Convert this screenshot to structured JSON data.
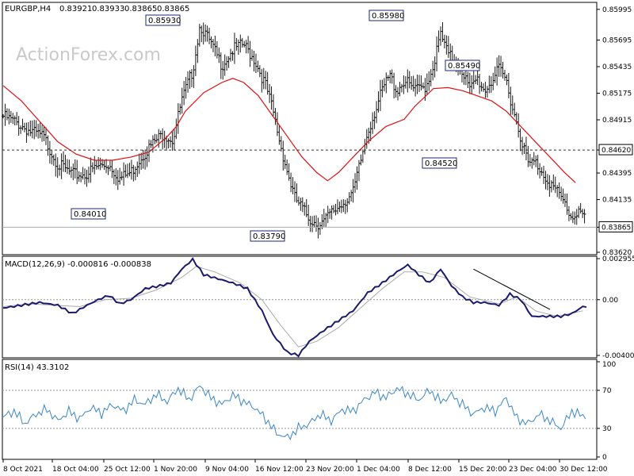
{
  "chart_data": {
    "type": "line",
    "symbol": "EURGBP,H4",
    "ohlc": [
      "0.83921",
      "0.83933",
      "0.83865",
      "0.83865"
    ],
    "watermark": "ActionForex.com",
    "price_axis_ticks": [
      "0.85995",
      "0.85695",
      "0.85435",
      "0.85175",
      "0.84915",
      "0.84620",
      "0.84395",
      "0.84135",
      "0.83865",
      "0.83620"
    ],
    "current_price_label": "0.83865",
    "level_line_label": "0.84620",
    "ylim": [
      0.8362,
      0.8604
    ],
    "price_annotations": [
      {
        "label": "0.85930",
        "value": 0.8593
      },
      {
        "label": "0.85980",
        "value": 0.8598
      },
      {
        "label": "0.85490",
        "value": 0.8549
      },
      {
        "label": "0.84520",
        "value": 0.8452
      },
      {
        "label": "0.84010",
        "value": 0.8401
      },
      {
        "label": "0.83790",
        "value": 0.8379
      }
    ],
    "x_tick_labels": [
      "8 Oct 2021",
      "18 Oct 04:00",
      "25 Oct 12:00",
      "1 Nov 20:00",
      "9 Nov 04:00",
      "16 Nov 12:00",
      "23 Nov 20:00",
      "1 Dec 04:00",
      "8 Dec 12:00",
      "15 Dec 20:00",
      "23 Dec 04:00",
      "30 Dec 12:00"
    ],
    "price_path": [
      [
        0,
        0.8495
      ],
      [
        8,
        0.8488
      ],
      [
        15,
        0.848
      ],
      [
        22,
        0.8475
      ],
      [
        30,
        0.8448
      ],
      [
        38,
        0.8438
      ],
      [
        45,
        0.8438
      ],
      [
        52,
        0.8446
      ],
      [
        58,
        0.8448
      ],
      [
        64,
        0.8434
      ],
      [
        70,
        0.844
      ],
      [
        76,
        0.8456
      ],
      [
        82,
        0.8468
      ],
      [
        88,
        0.8478
      ],
      [
        93,
        0.8472
      ],
      [
        98,
        0.851
      ],
      [
        104,
        0.854
      ],
      [
        108,
        0.8585
      ],
      [
        114,
        0.8565
      ],
      [
        120,
        0.8545
      ],
      [
        126,
        0.856
      ],
      [
        132,
        0.8565
      ],
      [
        138,
        0.855
      ],
      [
        144,
        0.8525
      ],
      [
        148,
        0.85
      ],
      [
        152,
        0.8468
      ],
      [
        156,
        0.844
      ],
      [
        160,
        0.8415
      ],
      [
        164,
        0.8405
      ],
      [
        168,
        0.8395
      ],
      [
        172,
        0.839
      ],
      [
        176,
        0.8392
      ],
      [
        180,
        0.84
      ],
      [
        186,
        0.841
      ],
      [
        192,
        0.842
      ],
      [
        196,
        0.845
      ],
      [
        200,
        0.848
      ],
      [
        204,
        0.85
      ],
      [
        208,
        0.852
      ],
      [
        212,
        0.8535
      ],
      [
        216,
        0.852
      ],
      [
        220,
        0.853
      ],
      [
        226,
        0.852
      ],
      [
        232,
        0.8525
      ],
      [
        236,
        0.8545
      ],
      [
        240,
        0.8575
      ],
      [
        244,
        0.8555
      ],
      [
        248,
        0.855
      ],
      [
        252,
        0.854
      ],
      [
        256,
        0.852
      ],
      [
        260,
        0.8532
      ],
      [
        264,
        0.852
      ],
      [
        268,
        0.853
      ],
      [
        272,
        0.854
      ],
      [
        276,
        0.853
      ],
      [
        280,
        0.85
      ],
      [
        284,
        0.8475
      ],
      [
        288,
        0.8448
      ],
      [
        292,
        0.845
      ],
      [
        296,
        0.844
      ],
      [
        300,
        0.843
      ],
      [
        304,
        0.842
      ],
      [
        308,
        0.841
      ],
      [
        312,
        0.8395
      ],
      [
        316,
        0.8405
      ],
      [
        320,
        0.839
      ]
    ],
    "ma_path": [
      [
        0,
        0.8525
      ],
      [
        10,
        0.851
      ],
      [
        20,
        0.849
      ],
      [
        30,
        0.847
      ],
      [
        40,
        0.8458
      ],
      [
        50,
        0.8452
      ],
      [
        60,
        0.8452
      ],
      [
        70,
        0.8455
      ],
      [
        80,
        0.846
      ],
      [
        90,
        0.8475
      ],
      [
        95,
        0.8485
      ],
      [
        100,
        0.85
      ],
      [
        110,
        0.8518
      ],
      [
        120,
        0.8528
      ],
      [
        126,
        0.8532
      ],
      [
        132,
        0.8528
      ],
      [
        140,
        0.8515
      ],
      [
        148,
        0.8495
      ],
      [
        156,
        0.8475
      ],
      [
        164,
        0.8455
      ],
      [
        172,
        0.844
      ],
      [
        178,
        0.8432
      ],
      [
        184,
        0.844
      ],
      [
        192,
        0.8455
      ],
      [
        200,
        0.847
      ],
      [
        210,
        0.8485
      ],
      [
        220,
        0.8492
      ],
      [
        226,
        0.8505
      ],
      [
        232,
        0.8515
      ],
      [
        236,
        0.8522
      ],
      [
        244,
        0.8523
      ],
      [
        252,
        0.852
      ],
      [
        260,
        0.8515
      ],
      [
        268,
        0.851
      ],
      [
        276,
        0.85
      ],
      [
        284,
        0.8485
      ],
      [
        292,
        0.847
      ],
      [
        300,
        0.8455
      ],
      [
        308,
        0.844
      ],
      [
        314,
        0.843
      ]
    ],
    "macd": {
      "label": "MACD(12,26,9) -0.000816 -0.000838",
      "axis_labels": [
        "0.002955",
        "0.00",
        "-0.004009"
      ],
      "ylim": [
        -0.004009,
        0.002955
      ],
      "macd_path": [
        [
          0,
          -0.0006
        ],
        [
          10,
          -0.0004
        ],
        [
          20,
          -0.0002
        ],
        [
          30,
          -0.0004
        ],
        [
          38,
          -0.001
        ],
        [
          46,
          -0.0004
        ],
        [
          52,
          0.0
        ],
        [
          58,
          0.0003
        ],
        [
          64,
          -0.0003
        ],
        [
          70,
          0.0
        ],
        [
          78,
          0.0008
        ],
        [
          86,
          0.001
        ],
        [
          92,
          0.0012
        ],
        [
          98,
          0.0022
        ],
        [
          104,
          0.0029
        ],
        [
          110,
          0.0018
        ],
        [
          118,
          0.0015
        ],
        [
          126,
          0.0012
        ],
        [
          134,
          0.0008
        ],
        [
          142,
          -0.0008
        ],
        [
          148,
          -0.0025
        ],
        [
          156,
          -0.0038
        ],
        [
          162,
          -0.004
        ],
        [
          168,
          -0.003
        ],
        [
          176,
          -0.0022
        ],
        [
          184,
          -0.0015
        ],
        [
          192,
          -0.0008
        ],
        [
          200,
          0.0005
        ],
        [
          208,
          0.0012
        ],
        [
          216,
          0.002
        ],
        [
          222,
          0.0025
        ],
        [
          228,
          0.0018
        ],
        [
          234,
          0.0012
        ],
        [
          240,
          0.0022
        ],
        [
          246,
          0.001
        ],
        [
          252,
          0.0002
        ],
        [
          258,
          -0.0002
        ],
        [
          264,
          -0.0002
        ],
        [
          272,
          -0.0004
        ],
        [
          278,
          0.0004
        ],
        [
          284,
          0.0
        ],
        [
          290,
          -0.0012
        ],
        [
          298,
          -0.0012
        ],
        [
          306,
          -0.0012
        ],
        [
          312,
          -0.001
        ],
        [
          318,
          -0.0005
        ]
      ],
      "signal_path": [
        [
          0,
          -0.0005
        ],
        [
          14,
          -0.0003
        ],
        [
          28,
          -0.0004
        ],
        [
          42,
          -0.0005
        ],
        [
          56,
          0.0
        ],
        [
          70,
          0.0001
        ],
        [
          84,
          0.0007
        ],
        [
          98,
          0.0016
        ],
        [
          106,
          0.0024
        ],
        [
          116,
          0.002
        ],
        [
          130,
          0.0012
        ],
        [
          142,
          0.0
        ],
        [
          152,
          -0.0018
        ],
        [
          162,
          -0.0034
        ],
        [
          172,
          -0.003
        ],
        [
          184,
          -0.002
        ],
        [
          196,
          -0.0006
        ],
        [
          208,
          0.0008
        ],
        [
          220,
          0.002
        ],
        [
          230,
          0.002
        ],
        [
          242,
          0.0016
        ],
        [
          256,
          0.0002
        ],
        [
          272,
          -0.0003
        ],
        [
          282,
          0.0002
        ],
        [
          292,
          -0.0008
        ],
        [
          304,
          -0.0012
        ],
        [
          318,
          -0.0008
        ]
      ]
    },
    "rsi": {
      "label": "RSI(14) 43.3102",
      "axis_labels": [
        "100",
        "70",
        "30",
        "0"
      ],
      "ylim": [
        0,
        100
      ],
      "levels": [
        70,
        30
      ],
      "path": [
        [
          0,
          42
        ],
        [
          6,
          48
        ],
        [
          12,
          35
        ],
        [
          18,
          45
        ],
        [
          24,
          50
        ],
        [
          30,
          38
        ],
        [
          36,
          48
        ],
        [
          42,
          40
        ],
        [
          48,
          52
        ],
        [
          54,
          46
        ],
        [
          60,
          55
        ],
        [
          66,
          48
        ],
        [
          72,
          60
        ],
        [
          78,
          55
        ],
        [
          84,
          66
        ],
        [
          90,
          58
        ],
        [
          96,
          72
        ],
        [
          102,
          60
        ],
        [
          108,
          75
        ],
        [
          114,
          62
        ],
        [
          120,
          55
        ],
        [
          126,
          65
        ],
        [
          132,
          58
        ],
        [
          138,
          52
        ],
        [
          144,
          40
        ],
        [
          150,
          25
        ],
        [
          156,
          20
        ],
        [
          162,
          30
        ],
        [
          168,
          35
        ],
        [
          174,
          45
        ],
        [
          180,
          38
        ],
        [
          186,
          50
        ],
        [
          192,
          48
        ],
        [
          198,
          60
        ],
        [
          204,
          68
        ],
        [
          210,
          62
        ],
        [
          216,
          72
        ],
        [
          222,
          66
        ],
        [
          228,
          60
        ],
        [
          234,
          70
        ],
        [
          240,
          58
        ],
        [
          246,
          65
        ],
        [
          252,
          55
        ],
        [
          258,
          45
        ],
        [
          264,
          52
        ],
        [
          270,
          48
        ],
        [
          276,
          62
        ],
        [
          282,
          40
        ],
        [
          288,
          35
        ],
        [
          294,
          45
        ],
        [
          300,
          38
        ],
        [
          306,
          30
        ],
        [
          312,
          48
        ],
        [
          318,
          43
        ]
      ]
    }
  }
}
